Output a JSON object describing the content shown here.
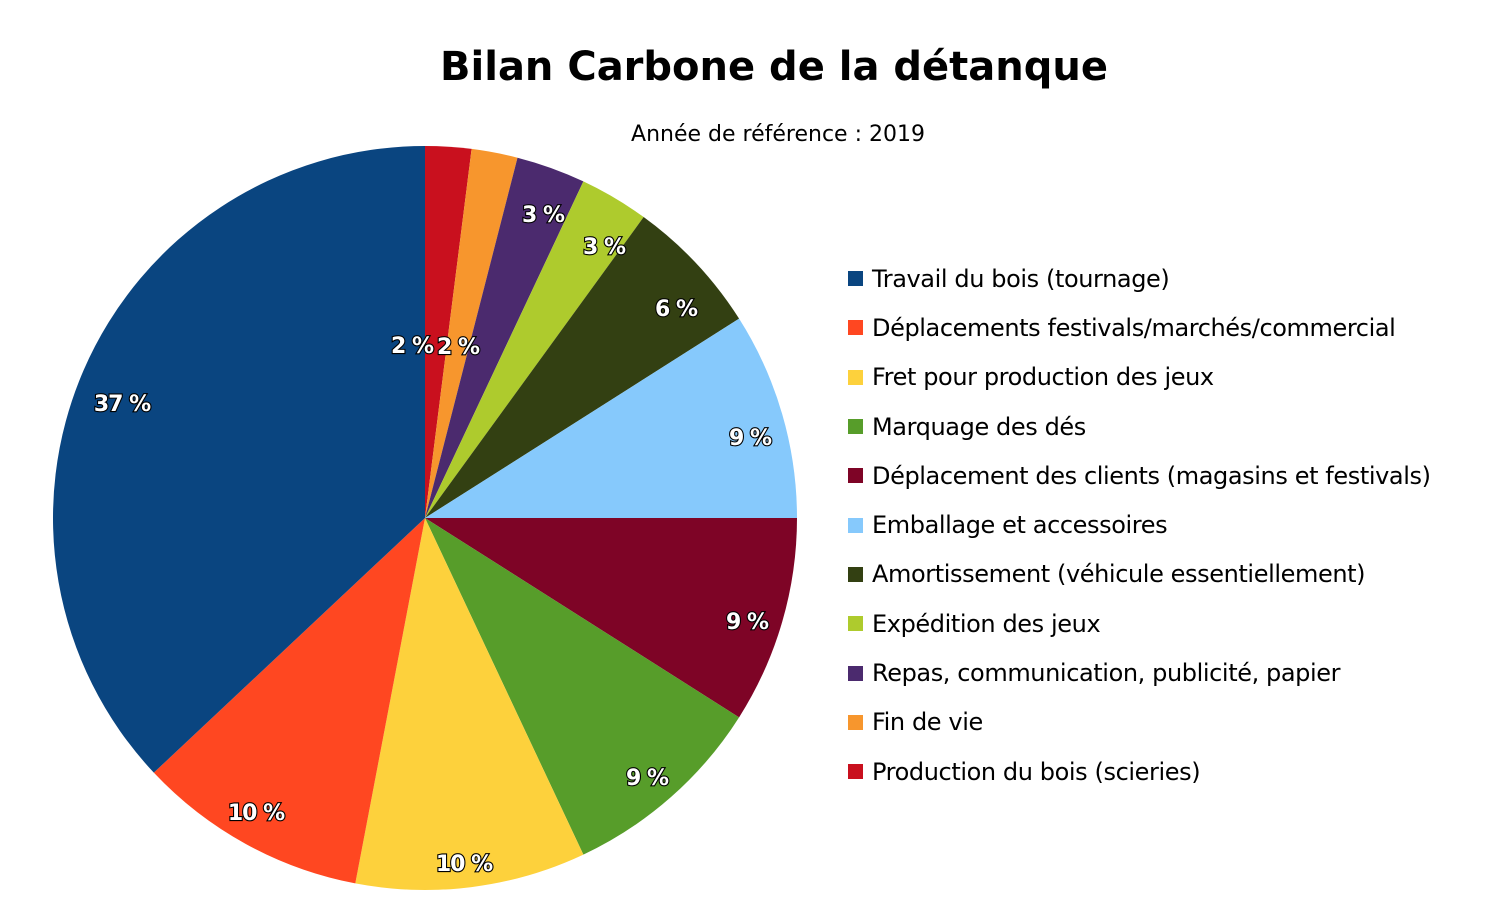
{
  "chart_data": {
    "type": "pie",
    "title": "Bilan Carbone de la détanque",
    "subtitle": "Année de référence : 2019",
    "legend_position": "right",
    "slices": [
      {
        "name": "Production du bois (scieries)",
        "value": 2,
        "label": "2 %",
        "color": "#C9101E"
      },
      {
        "name": "Fin de vie",
        "value": 2,
        "label": "2 %",
        "color": "#F7962D"
      },
      {
        "name": "Repas, communication, publicité, papier",
        "value": 3,
        "label": "3 %",
        "color": "#4B2A6E"
      },
      {
        "name": "Expédition des jeux",
        "value": 3,
        "label": "3 %",
        "color": "#AECB2D"
      },
      {
        "name": "Amortissement (véhicule essentiellement)",
        "value": 6,
        "label": "6 %",
        "color": "#334012"
      },
      {
        "name": "Emballage et accessoires",
        "value": 9,
        "label": "9 %",
        "color": "#86C9FC"
      },
      {
        "name": "Déplacement des clients (magasins et festivals)",
        "value": 9,
        "label": "9 %",
        "color": "#7E0426"
      },
      {
        "name": "Marquage des dés",
        "value": 9,
        "label": "9 %",
        "color": "#579D2A"
      },
      {
        "name": "Fret pour production des jeux",
        "value": 10,
        "label": "10 %",
        "color": "#FDD13C"
      },
      {
        "name": "Déplacements festivals/marchés/commercial",
        "value": 10,
        "label": "10 %",
        "color": "#FF4721"
      },
      {
        "name": "Travail du bois (tournage)",
        "value": 37,
        "label": "37 %",
        "color": "#0A4580"
      }
    ],
    "legend": [
      {
        "label": "Travail du bois (tournage)",
        "color": "#0A4580"
      },
      {
        "label": "Déplacements festivals/marchés/commercial",
        "color": "#FF4721"
      },
      {
        "label": "Fret pour production des jeux",
        "color": "#FDD13C"
      },
      {
        "label": "Marquage des dés",
        "color": "#579D2A"
      },
      {
        "label": "Déplacement des clients (magasins et festivals)",
        "color": "#7E0426"
      },
      {
        "label": "Emballage et accessoires",
        "color": "#86C9FC"
      },
      {
        "label": "Amortissement (véhicule essentiellement)",
        "color": "#334012"
      },
      {
        "label": "Expédition des jeux",
        "color": "#AECB2D"
      },
      {
        "label": "Repas, communication, publicité, papier",
        "color": "#4B2A6E"
      },
      {
        "label": "Fin de vie",
        "color": "#F7962D"
      },
      {
        "label": "Production du bois (scieries)",
        "color": "#C9101E"
      }
    ]
  }
}
